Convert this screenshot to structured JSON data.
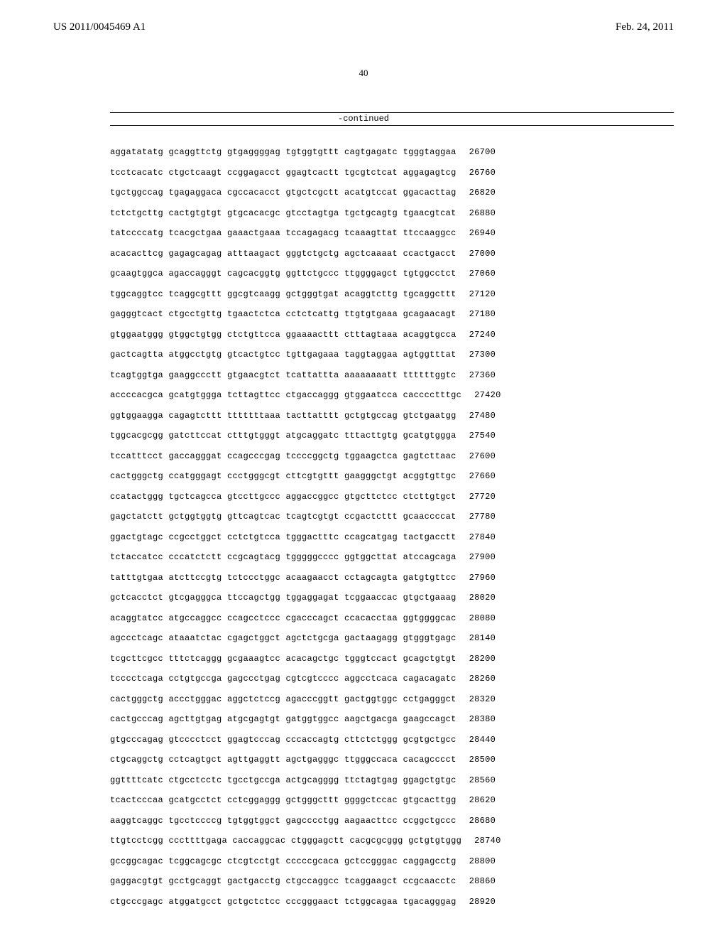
{
  "header": {
    "left": "US 2011/0045469 A1",
    "right": "Feb. 24, 2011"
  },
  "page_number": "40",
  "continued_label": "-continued",
  "sequences": [
    {
      "seq": "aggatatatg gcaggttctg gtgaggggag tgtggtgttt cagtgagatc tgggtaggaa",
      "num": "26700"
    },
    {
      "seq": "tcctcacatc ctgctcaagt ccggagacct ggagtcactt tgcgtctcat aggagagtcg",
      "num": "26760"
    },
    {
      "seq": "tgctggccag tgagaggaca cgccacacct gtgctcgctt acatgtccat ggacacttag",
      "num": "26820"
    },
    {
      "seq": "tctctgcttg cactgtgtgt gtgcacacgc gtcctagtga tgctgcagtg tgaacgtcat",
      "num": "26880"
    },
    {
      "seq": "tatccccatg tcacgctgaa gaaactgaaa tccagagacg tcaaagttat ttccaaggcc",
      "num": "26940"
    },
    {
      "seq": "acacacttcg gagagcagag atttaagact gggtctgctg agctcaaaat ccactgacct",
      "num": "27000"
    },
    {
      "seq": "gcaagtggca agaccagggt cagcacggtg ggttctgccc ttggggagct tgtggcctct",
      "num": "27060"
    },
    {
      "seq": "tggcaggtcc tcaggcgttt ggcgtcaagg gctgggtgat acaggtcttg tgcaggcttt",
      "num": "27120"
    },
    {
      "seq": "gagggtcact ctgcctgttg tgaactctca cctctcattg ttgtgtgaaa gcagaacagt",
      "num": "27180"
    },
    {
      "seq": "gtggaatggg gtggctgtgg ctctgttcca ggaaaacttt ctttagtaaa acaggtgcca",
      "num": "27240"
    },
    {
      "seq": "gactcagtta atggcctgtg gtcactgtcc tgttgagaaa taggtaggaa agtggtttat",
      "num": "27300"
    },
    {
      "seq": "tcagtggtga gaaggccctt gtgaacgtct tcattattta aaaaaaaatt ttttttggtc",
      "num": "27360"
    },
    {
      "seq": "accccacgca gcatgtggga tcttagttcc ctgaccaggg gtggaatcca cacccctttgc",
      "num": "27420"
    },
    {
      "seq": "ggtggaagga cagagtcttt tttttttaaa tacttatttt gctgtgccag gtctgaatgg",
      "num": "27480"
    },
    {
      "seq": "tggcacgcgg gatcttccat ctttgtgggt atgcaggatc tttacttgtg gcatgtggga",
      "num": "27540"
    },
    {
      "seq": "tccatttcct gaccagggat ccagcccgag tccccggctg tggaagctca gagtcttaac",
      "num": "27600"
    },
    {
      "seq": "cactgggctg ccatgggagt ccctgggcgt cttcgtgttt gaagggctgt acggtgttgc",
      "num": "27660"
    },
    {
      "seq": "ccatactggg tgctcagcca gtccttgccc aggaccggcc gtgcttctcc ctcttgtgct",
      "num": "27720"
    },
    {
      "seq": "gagctatctt gctggtggtg gttcagtcac tcagtcgtgt ccgactcttt gcaaccccat",
      "num": "27780"
    },
    {
      "seq": "ggactgtagc ccgcctggct cctctgtcca tgggactttc ccagcatgag tactgacctt",
      "num": "27840"
    },
    {
      "seq": "tctaccatcc cccatctctt ccgcagtacg tgggggcccc ggtggcttat atccagcaga",
      "num": "27900"
    },
    {
      "seq": "tatttgtgaa atcttccgtg tctccctggc acaagaacct cctagcagta gatgtgttcc",
      "num": "27960"
    },
    {
      "seq": "gctcacctct gtcgagggca ttccagctgg tggaggagat tcggaaccac gtgctgaaag",
      "num": "28020"
    },
    {
      "seq": "acaggtatcc atgccaggcc ccagcctccc cgacccagct ccacacctaa ggtggggcac",
      "num": "28080"
    },
    {
      "seq": "agccctcagc ataaatctac cgagctggct agctctgcga gactaagagg gtgggtgagc",
      "num": "28140"
    },
    {
      "seq": "tcgcttcgcc tttctcaggg gcgaaagtcc acacagctgc tgggtccact gcagctgtgt",
      "num": "28200"
    },
    {
      "seq": "tcccctcaga cctgtgccga gagccctgag cgtcgtcccc aggcctcaca cagacagatc",
      "num": "28260"
    },
    {
      "seq": "cactgggctg accctgggac aggctctccg agacccggtt gactggtggc cctgagggct",
      "num": "28320"
    },
    {
      "seq": "cactgcccag agcttgtgag atgcgagtgt gatggtggcc aagctgacga gaagccagct",
      "num": "28380"
    },
    {
      "seq": "gtgcccagag gtcccctcct ggagtcccag cccaccagtg cttctctggg gcgtgctgcc",
      "num": "28440"
    },
    {
      "seq": "ctgcaggctg cctcagtgct agttgaggtt agctgagggc ttgggccaca cacagcccct",
      "num": "28500"
    },
    {
      "seq": "ggttttcatc ctgcctcctc tgcctgccga actgcagggg ttctagtgag ggagctgtgc",
      "num": "28560"
    },
    {
      "seq": "tcactcccaa gcatgcctct cctcggaggg gctgggcttt ggggctccac gtgcacttgg",
      "num": "28620"
    },
    {
      "seq": "aaggtcaggc tgcctccccg tgtggtggct gagcccctgg aagaacttcc ccggctgccc",
      "num": "28680"
    },
    {
      "seq": "ttgtcctcgg cccttttgaga caccaggcac ctgggagctt cacgcgcggg gctgtgtggg",
      "num": "28740"
    },
    {
      "seq": "gccggcagac tcggcagcgc ctcgtcctgt cccccgcaca gctccgggac caggagcctg",
      "num": "28800"
    },
    {
      "seq": "gaggacgtgt gcctgcaggt gactgacctg ctgccaggcc tcaggaagct ccgcaacctc",
      "num": "28860"
    },
    {
      "seq": "ctgcccgagc atggatgcct gctgctctcc cccgggaact tctggcagaa tgacagggag",
      "num": "28920"
    }
  ]
}
